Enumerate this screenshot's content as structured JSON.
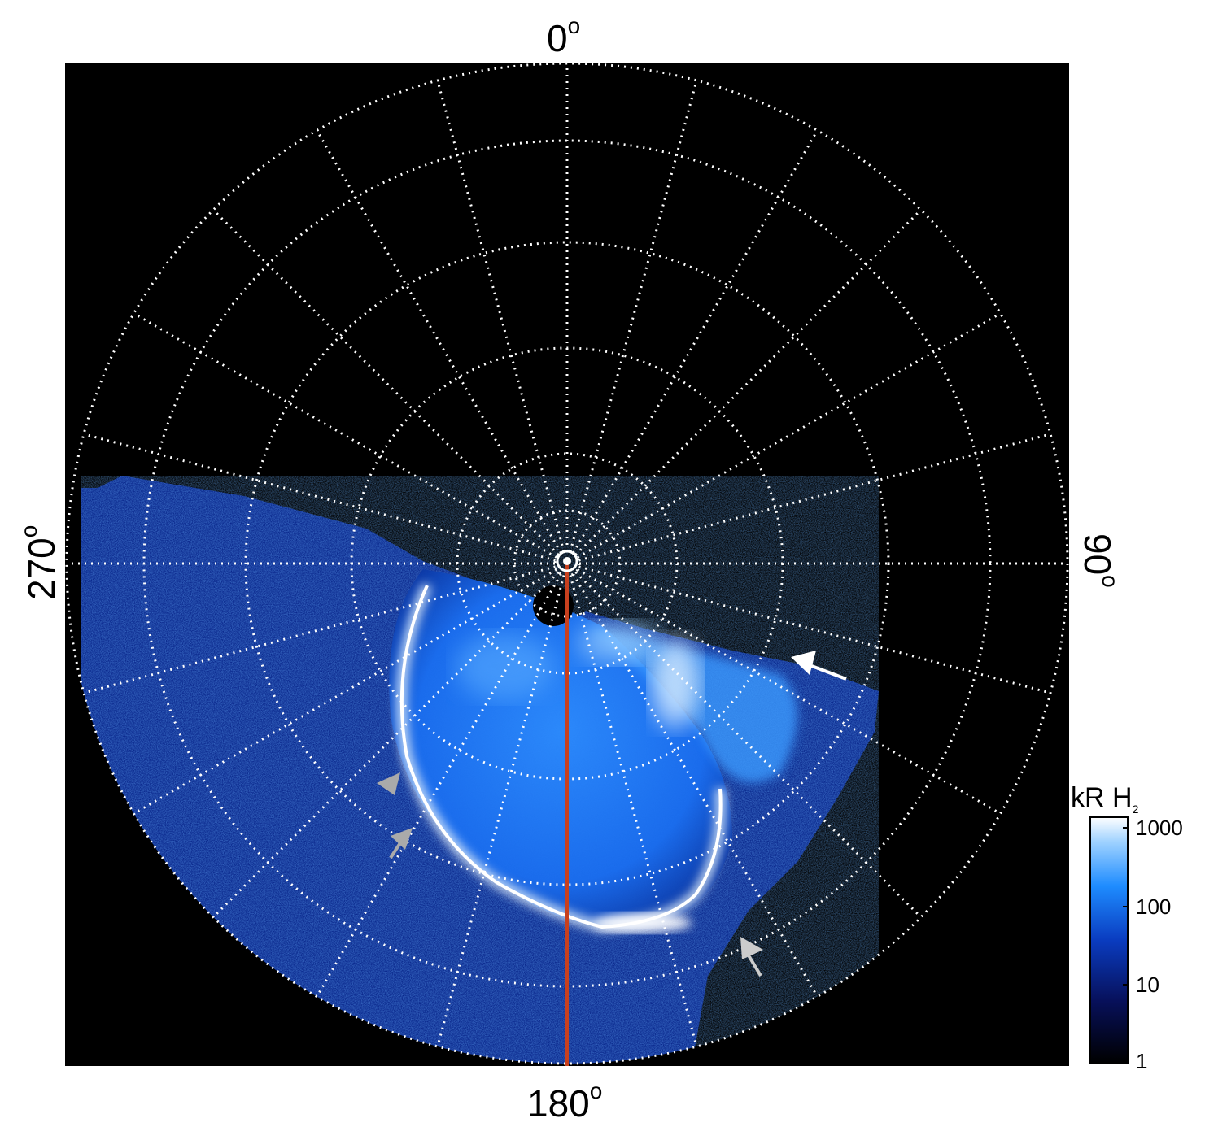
{
  "polar_labels": {
    "top": "0",
    "right": "90",
    "bottom": "180",
    "left": "270",
    "degree_symbol": "o"
  },
  "colorbar": {
    "title": "kR H",
    "title_subscript": "2",
    "ticks": [
      "1000",
      "100",
      "10",
      "1"
    ],
    "scale": "log"
  },
  "colors": {
    "background": "#000000",
    "grid": "#ffffff",
    "meridian_line": "#c8401e",
    "aurora_bright": "#f2f8ff",
    "aurora_mid": "#2a8cff",
    "aurora_dim": "#0a2a9a"
  },
  "annotations": {
    "arrows": [
      "white-arrow",
      "gray-arrow",
      "gray-arrow",
      "gray-arrow"
    ]
  }
}
